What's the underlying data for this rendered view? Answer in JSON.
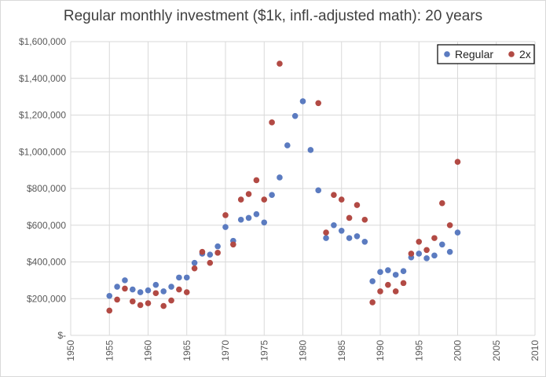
{
  "chart_data": {
    "type": "scatter",
    "title": "Regular monthly investment ($1k, infl.-adjusted math): 20 years",
    "xlabel": "",
    "ylabel": "",
    "xlim": [
      1950,
      2010
    ],
    "ylim": [
      0,
      1600000
    ],
    "x_ticks": [
      "1950",
      "1955",
      "1960",
      "1965",
      "1970",
      "1975",
      "1980",
      "1985",
      "1990",
      "1995",
      "2000",
      "2005",
      "2010"
    ],
    "y_ticks": [
      "$-",
      "$200,000",
      "$400,000",
      "$600,000",
      "$800,000",
      "$1,000,000",
      "$1,200,000",
      "$1,400,000",
      "$1,600,000"
    ],
    "grid": true,
    "legend_position": "top-right",
    "series": [
      {
        "name": "Regular",
        "color": "#5b7bc0",
        "points": [
          [
            1955,
            215000
          ],
          [
            1956,
            265000
          ],
          [
            1957,
            300000
          ],
          [
            1958,
            250000
          ],
          [
            1959,
            235000
          ],
          [
            1960,
            245000
          ],
          [
            1961,
            275000
          ],
          [
            1962,
            240000
          ],
          [
            1963,
            265000
          ],
          [
            1964,
            315000
          ],
          [
            1965,
            315000
          ],
          [
            1966,
            395000
          ],
          [
            1967,
            445000
          ],
          [
            1968,
            440000
          ],
          [
            1969,
            485000
          ],
          [
            1970,
            590000
          ],
          [
            1971,
            515000
          ],
          [
            1972,
            630000
          ],
          [
            1973,
            640000
          ],
          [
            1974,
            660000
          ],
          [
            1975,
            615000
          ],
          [
            1976,
            765000
          ],
          [
            1977,
            860000
          ],
          [
            1978,
            1035000
          ],
          [
            1979,
            1195000
          ],
          [
            1980,
            1275000
          ],
          [
            1981,
            1010000
          ],
          [
            1982,
            790000
          ],
          [
            1983,
            530000
          ],
          [
            1984,
            600000
          ],
          [
            1985,
            570000
          ],
          [
            1986,
            530000
          ],
          [
            1987,
            540000
          ],
          [
            1988,
            510000
          ],
          [
            1989,
            295000
          ],
          [
            1990,
            345000
          ],
          [
            1991,
            355000
          ],
          [
            1992,
            330000
          ],
          [
            1993,
            350000
          ],
          [
            1994,
            425000
          ],
          [
            1995,
            445000
          ],
          [
            1996,
            420000
          ],
          [
            1997,
            435000
          ],
          [
            1998,
            495000
          ],
          [
            1999,
            455000
          ],
          [
            2000,
            560000
          ]
        ]
      },
      {
        "name": "2x",
        "color": "#b24a44",
        "points": [
          [
            1955,
            135000
          ],
          [
            1956,
            195000
          ],
          [
            1957,
            255000
          ],
          [
            1958,
            185000
          ],
          [
            1959,
            165000
          ],
          [
            1960,
            175000
          ],
          [
            1961,
            230000
          ],
          [
            1962,
            160000
          ],
          [
            1963,
            190000
          ],
          [
            1964,
            250000
          ],
          [
            1965,
            235000
          ],
          [
            1966,
            365000
          ],
          [
            1967,
            455000
          ],
          [
            1968,
            395000
          ],
          [
            1969,
            450000
          ],
          [
            1970,
            655000
          ],
          [
            1971,
            495000
          ],
          [
            1972,
            740000
          ],
          [
            1973,
            770000
          ],
          [
            1974,
            845000
          ],
          [
            1975,
            740000
          ],
          [
            1976,
            1160000
          ],
          [
            1977,
            1480000
          ],
          [
            1982,
            1265000
          ],
          [
            1983,
            560000
          ],
          [
            1984,
            765000
          ],
          [
            1985,
            740000
          ],
          [
            1986,
            640000
          ],
          [
            1987,
            710000
          ],
          [
            1988,
            630000
          ],
          [
            1989,
            180000
          ],
          [
            1990,
            240000
          ],
          [
            1991,
            275000
          ],
          [
            1992,
            240000
          ],
          [
            1993,
            285000
          ],
          [
            1994,
            445000
          ],
          [
            1995,
            510000
          ],
          [
            1996,
            465000
          ],
          [
            1997,
            530000
          ],
          [
            1998,
            720000
          ],
          [
            1999,
            600000
          ],
          [
            2000,
            945000
          ]
        ]
      }
    ]
  }
}
